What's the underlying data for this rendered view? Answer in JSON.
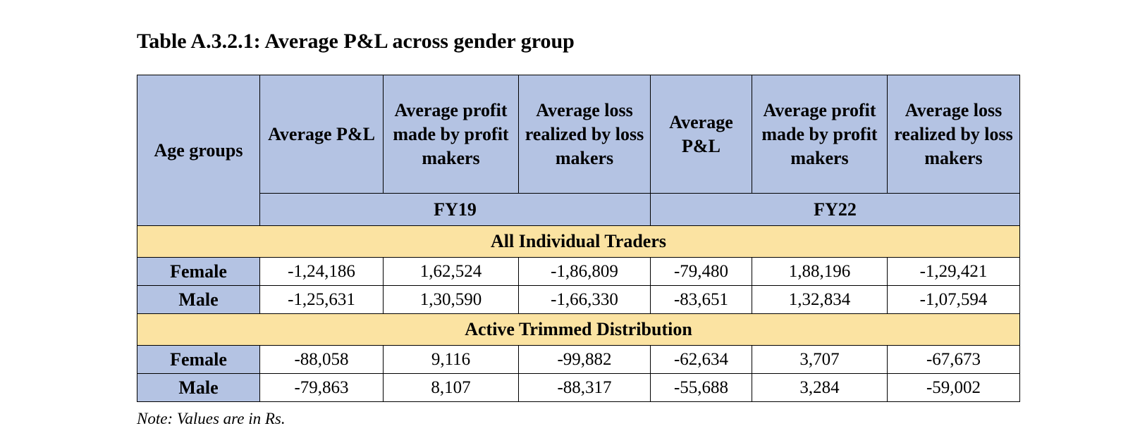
{
  "title": "Table A.3.2.1: Average P&L across gender group",
  "header": {
    "row_label": "Age groups",
    "columns": [
      "Average P&L",
      "Average profit made by profit makers",
      "Average loss realized by loss makers",
      "Average P&L",
      "Average profit made by profit makers",
      "Average loss realized by loss makers"
    ],
    "years": [
      "FY19",
      "FY22"
    ]
  },
  "sections": [
    {
      "name": "All Individual Traders",
      "rows": [
        {
          "label": "Female",
          "values": [
            "-1,24,186",
            "1,62,524",
            "-1,86,809",
            "-79,480",
            "1,88,196",
            "-1,29,421"
          ]
        },
        {
          "label": "Male",
          "values": [
            "-1,25,631",
            "1,30,590",
            "-1,66,330",
            "-83,651",
            "1,32,834",
            "-1,07,594"
          ]
        }
      ]
    },
    {
      "name": "Active Trimmed Distribution",
      "rows": [
        {
          "label": "Female",
          "values": [
            "-88,058",
            "9,116",
            "-99,882",
            "-62,634",
            "3,707",
            "-67,673"
          ]
        },
        {
          "label": "Male",
          "values": [
            "-79,863",
            "8,107",
            "-88,317",
            "-55,688",
            "3,284",
            "-59,002"
          ]
        }
      ]
    }
  ],
  "note": "Note: Values are in Rs.",
  "colors": {
    "header_bg": "#b4c3e3",
    "section_bg": "#fbe3a2"
  }
}
